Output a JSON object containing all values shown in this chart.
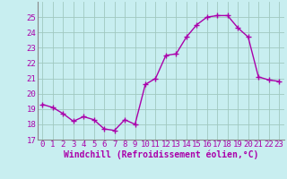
{
  "x": [
    0,
    1,
    2,
    3,
    4,
    5,
    6,
    7,
    8,
    9,
    10,
    11,
    12,
    13,
    14,
    15,
    16,
    17,
    18,
    19,
    20,
    21,
    22,
    23
  ],
  "y": [
    19.3,
    19.1,
    18.7,
    18.2,
    18.5,
    18.3,
    17.7,
    17.6,
    18.3,
    18.0,
    20.6,
    21.0,
    22.5,
    22.6,
    23.7,
    24.5,
    25.0,
    25.1,
    25.1,
    24.3,
    23.7,
    21.1,
    20.9,
    20.8
  ],
  "line_color": "#aa00aa",
  "marker": "+",
  "marker_size": 4,
  "bg_color": "#c8eef0",
  "grid_color": "#a0c8c0",
  "xlabel": "Windchill (Refroidissement éolien,°C)",
  "ylim": [
    17,
    26
  ],
  "xlim": [
    -0.5,
    23.5
  ],
  "yticks": [
    17,
    18,
    19,
    20,
    21,
    22,
    23,
    24,
    25
  ],
  "xticks": [
    0,
    1,
    2,
    3,
    4,
    5,
    6,
    7,
    8,
    9,
    10,
    11,
    12,
    13,
    14,
    15,
    16,
    17,
    18,
    19,
    20,
    21,
    22,
    23
  ],
  "xlabel_fontsize": 7,
  "tick_fontsize": 6.5,
  "line_width": 1.0,
  "spine_color": "#888888"
}
